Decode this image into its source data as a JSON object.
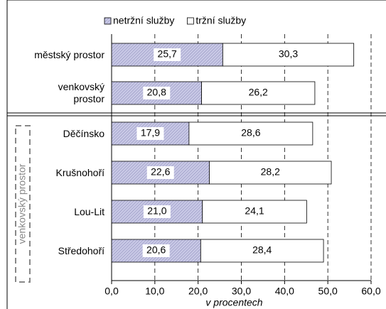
{
  "chart_data": {
    "type": "stacked_barh",
    "categories": [
      "městský prostor",
      "venkovský prostor",
      "Děčínsko",
      "Krušnohoří",
      "Lou-Lit",
      "Středohoří"
    ],
    "group_label": "venkovský prostor",
    "series": [
      {
        "name": "netržní služby",
        "color": "#c9c9e6",
        "values": [
          25.7,
          20.8,
          17.9,
          22.6,
          21.0,
          20.6
        ],
        "value_labels": [
          "25,7",
          "20,8",
          "17,9",
          "22,6",
          "21,0",
          "20,6"
        ]
      },
      {
        "name": "tržní služby",
        "color": "#ffffff",
        "values": [
          30.3,
          26.2,
          28.6,
          28.2,
          24.1,
          28.4
        ],
        "value_labels": [
          "30,3",
          "26,2",
          "28,6",
          "28,2",
          "24,1",
          "28,4"
        ]
      }
    ],
    "xlabel": "v procentech",
    "xlim": [
      0,
      60
    ],
    "xticks": [
      {
        "value": 0,
        "label": "0,0"
      },
      {
        "value": 10,
        "label": "10,0"
      },
      {
        "value": 20,
        "label": "20,0"
      },
      {
        "value": 30,
        "label": "30,0"
      },
      {
        "value": 40,
        "label": "40,0"
      },
      {
        "value": 50,
        "label": "50,0"
      },
      {
        "value": 60,
        "label": "60,0"
      }
    ],
    "grid": true,
    "legend": "top"
  }
}
